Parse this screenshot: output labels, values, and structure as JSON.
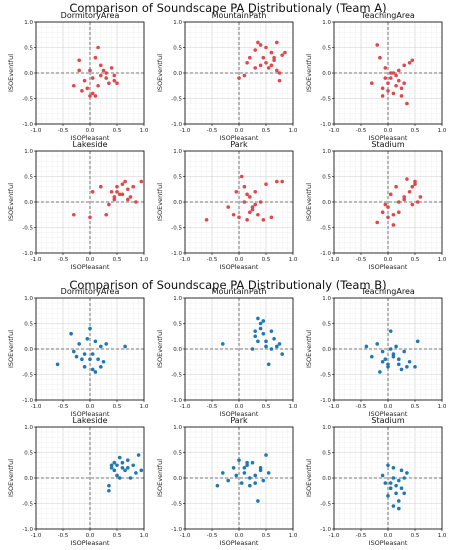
{
  "figure": {
    "titles": [
      "Comparison of Soundscape PA Distributionaly (Team A)",
      "Comparison of Soundscape PA Distributionaly (Team B)"
    ]
  },
  "chart_data": [
    {
      "type": "scatter",
      "group": "Team A",
      "title": "DormitoryArea",
      "xlabel": "ISOPleasant",
      "ylabel": "ISOEventful",
      "xlim": [
        -1,
        1
      ],
      "ylim": [
        -1,
        1
      ],
      "ticks": [
        "-1.0",
        "-0.5",
        "0.0",
        "0.5",
        "1.0"
      ],
      "grid": true,
      "color": "#e0474c",
      "x": [
        -0.3,
        -0.2,
        -0.15,
        -0.05,
        0.0,
        0.05,
        0.1,
        0.15,
        0.2,
        0.25,
        0.3,
        0.35,
        0.4,
        0.45,
        0.5,
        0.0,
        0.05,
        0.1,
        -0.2,
        0.2,
        0.3,
        0.45,
        -0.1,
        0.15
      ],
      "y": [
        -0.25,
        0.05,
        -0.35,
        -0.3,
        -0.45,
        -0.4,
        0.3,
        0.5,
        0.15,
        0.05,
        -0.1,
        -0.2,
        0.1,
        -0.15,
        -0.2,
        0.05,
        -0.1,
        -0.45,
        0.25,
        -0.05,
        0.0,
        -0.05,
        -0.15,
        -0.25
      ]
    },
    {
      "type": "scatter",
      "group": "Team A",
      "title": "MountainPath",
      "xlabel": "ISOPleasant",
      "ylabel": "ISOEventful",
      "xlim": [
        -1,
        1
      ],
      "ylim": [
        -1,
        1
      ],
      "ticks": [
        "-1.0",
        "-0.5",
        "0.0",
        "0.5",
        "1.0"
      ],
      "grid": true,
      "color": "#e0474c",
      "x": [
        0.0,
        0.1,
        0.15,
        0.2,
        0.3,
        0.35,
        0.4,
        0.45,
        0.5,
        0.55,
        0.6,
        0.65,
        0.7,
        0.75,
        0.8,
        0.85,
        0.3,
        0.5,
        0.6,
        0.7,
        0.75,
        0.4,
        0.65
      ],
      "y": [
        -0.1,
        -0.05,
        0.2,
        0.3,
        0.45,
        0.6,
        0.15,
        0.3,
        0.5,
        0.1,
        0.4,
        0.25,
        0.6,
        0.0,
        0.35,
        0.4,
        0.1,
        0.2,
        0.15,
        0.05,
        -0.15,
        0.55,
        0.3
      ]
    },
    {
      "type": "scatter",
      "group": "Team A",
      "title": "TeachingArea",
      "xlabel": "ISOPleasant",
      "ylabel": "ISOEventful",
      "xlim": [
        -1,
        1
      ],
      "ylim": [
        -1,
        1
      ],
      "ticks": [
        "-1.0",
        "-0.5",
        "0.0",
        "0.5",
        "1.0"
      ],
      "grid": true,
      "color": "#e0474c",
      "x": [
        -0.3,
        -0.2,
        -0.15,
        -0.1,
        -0.05,
        0.0,
        0.05,
        0.1,
        0.15,
        0.2,
        0.25,
        0.3,
        0.35,
        0.4,
        0.45,
        -0.1,
        0.0,
        0.1,
        0.2,
        0.3,
        0.05,
        -0.05,
        0.15,
        0.25
      ],
      "y": [
        -0.2,
        0.55,
        0.3,
        -0.3,
        0.1,
        -0.2,
        -0.1,
        0.0,
        -0.05,
        -0.15,
        -0.3,
        0.15,
        -0.6,
        0.2,
        0.25,
        -0.45,
        -0.35,
        -0.4,
        0.05,
        -0.2,
        0.0,
        -0.1,
        -0.25,
        -0.45
      ]
    },
    {
      "type": "scatter",
      "group": "Team A",
      "title": "Lakeside",
      "xlabel": "ISOPleasant",
      "ylabel": "ISOEventful",
      "xlim": [
        -1,
        1
      ],
      "ylim": [
        -1,
        1
      ],
      "ticks": [
        "-1.0",
        "-0.5",
        "0.0",
        "0.5",
        "1.0"
      ],
      "grid": true,
      "color": "#e0474c",
      "x": [
        -0.3,
        0.0,
        0.05,
        0.3,
        0.4,
        0.45,
        0.5,
        0.55,
        0.6,
        0.65,
        0.7,
        0.75,
        0.8,
        0.85,
        0.95,
        0.35,
        0.5,
        0.6,
        0.7,
        0.45,
        0.2
      ],
      "y": [
        -0.25,
        -0.3,
        0.2,
        -0.25,
        0.2,
        0.05,
        0.3,
        0.15,
        0.35,
        0.4,
        0.25,
        0.1,
        0.3,
        0.0,
        0.4,
        -0.05,
        0.2,
        0.15,
        0.05,
        0.1,
        0.3
      ]
    },
    {
      "type": "scatter",
      "group": "Team A",
      "title": "Park",
      "xlabel": "ISOPleasant",
      "ylabel": "ISOEventful",
      "xlim": [
        -1,
        1
      ],
      "ylim": [
        -1,
        1
      ],
      "ticks": [
        "-1.0",
        "-0.5",
        "0.0",
        "0.5",
        "1.0"
      ],
      "grid": true,
      "color": "#e0474c",
      "x": [
        -0.6,
        -0.2,
        -0.1,
        0.0,
        0.05,
        0.1,
        0.15,
        0.2,
        0.25,
        0.3,
        0.35,
        0.4,
        0.5,
        0.6,
        0.7,
        0.8,
        0.1,
        0.2,
        0.3,
        0.45,
        -0.05,
        0.25,
        0.15
      ],
      "y": [
        -0.35,
        -0.1,
        -0.25,
        -0.3,
        0.5,
        0.3,
        -0.35,
        0.1,
        -0.15,
        -0.05,
        -0.25,
        0.0,
        0.35,
        -0.3,
        0.4,
        0.4,
        0.0,
        -0.2,
        0.2,
        -0.35,
        0.2,
        -0.1,
        0.15
      ]
    },
    {
      "type": "scatter",
      "group": "Team A",
      "title": "Stadium",
      "xlabel": "ISOPleasant",
      "ylabel": "ISOEventful",
      "xlim": [
        -1,
        1
      ],
      "ylim": [
        -1,
        1
      ],
      "ticks": [
        "-1.0",
        "-0.5",
        "0.0",
        "0.5",
        "1.0"
      ],
      "grid": true,
      "color": "#e0474c",
      "x": [
        -0.2,
        -0.1,
        0.0,
        0.05,
        0.1,
        0.15,
        0.2,
        0.3,
        0.35,
        0.4,
        0.45,
        0.5,
        0.55,
        0.6,
        0.0,
        0.2,
        0.3,
        0.45,
        0.5,
        0.1,
        -0.05
      ],
      "y": [
        -0.4,
        -0.2,
        -0.3,
        0.15,
        -0.45,
        0.3,
        0.0,
        0.1,
        0.45,
        0.2,
        -0.05,
        0.35,
        0.0,
        0.1,
        -0.1,
        -0.2,
        0.05,
        0.3,
        0.4,
        -0.25,
        -0.05
      ]
    },
    {
      "type": "scatter",
      "group": "Team B",
      "title": "DormitoryArea",
      "xlabel": "ISOPleasant",
      "ylabel": "ISOEventful",
      "xlim": [
        -1,
        1
      ],
      "ylim": [
        -1,
        1
      ],
      "ticks": [
        "-1.0",
        "-0.5",
        "0.0",
        "0.5",
        "1.0"
      ],
      "grid": true,
      "color": "#1f77b4",
      "x": [
        -0.6,
        -0.35,
        -0.3,
        -0.2,
        -0.15,
        -0.1,
        -0.05,
        0.0,
        0.05,
        0.1,
        0.15,
        0.2,
        0.25,
        0.3,
        0.65,
        -0.1,
        0.0,
        0.1,
        -0.25,
        0.2,
        0.05
      ],
      "y": [
        -0.3,
        0.3,
        -0.05,
        0.1,
        -0.2,
        -0.35,
        0.2,
        0.4,
        -0.1,
        -0.45,
        -0.2,
        0.05,
        -0.25,
        0.1,
        0.05,
        -0.1,
        -0.2,
        0.15,
        -0.15,
        -0.35,
        -0.4
      ]
    },
    {
      "type": "scatter",
      "group": "Team B",
      "title": "MountainPath",
      "xlabel": "ISOPleasant",
      "ylabel": "ISOEventful",
      "xlim": [
        -1,
        1
      ],
      "ylim": [
        -1,
        1
      ],
      "ticks": [
        "-1.0",
        "-0.5",
        "0.0",
        "0.5",
        "1.0"
      ],
      "grid": true,
      "color": "#1f77b4",
      "x": [
        -0.3,
        0.25,
        0.3,
        0.35,
        0.4,
        0.45,
        0.5,
        0.55,
        0.6,
        0.65,
        0.7,
        0.75,
        0.8,
        0.35,
        0.45,
        0.6,
        0.4,
        0.5,
        0.3
      ],
      "y": [
        0.1,
        0.0,
        0.25,
        0.6,
        0.4,
        0.55,
        0.15,
        -0.3,
        0.35,
        0.2,
        0.05,
        0.1,
        -0.1,
        0.15,
        0.3,
        0.0,
        0.5,
        0.05,
        0.35
      ]
    },
    {
      "type": "scatter",
      "group": "Team B",
      "title": "TeachingArea",
      "xlabel": "ISOPleasant",
      "ylabel": "ISOEventful",
      "xlim": [
        -1,
        1
      ],
      "ylim": [
        -1,
        1
      ],
      "ticks": [
        "-1.0",
        "-0.5",
        "0.0",
        "0.5",
        "1.0"
      ],
      "grid": true,
      "color": "#1f77b4",
      "x": [
        -0.4,
        -0.3,
        -0.2,
        -0.15,
        -0.1,
        -0.05,
        0.0,
        0.05,
        0.1,
        0.15,
        0.2,
        0.25,
        0.3,
        0.35,
        0.4,
        0.5,
        0.55,
        0.0,
        0.1,
        0.2,
        -0.1,
        0.05
      ],
      "y": [
        0.05,
        -0.15,
        0.1,
        -0.45,
        -0.05,
        -0.2,
        -0.35,
        0.35,
        -0.1,
        0.05,
        -0.3,
        -0.4,
        -0.05,
        -0.35,
        -0.25,
        -0.35,
        0.15,
        -0.3,
        -0.15,
        -0.2,
        -0.25,
        0.0
      ]
    },
    {
      "type": "scatter",
      "group": "Team B",
      "title": "Lakeside",
      "xlabel": "ISOPleasant",
      "ylabel": "ISOEventful",
      "xlim": [
        -1,
        1
      ],
      "ylim": [
        -1,
        1
      ],
      "ticks": [
        "-1.0",
        "-0.5",
        "0.0",
        "0.5",
        "1.0"
      ],
      "grid": true,
      "color": "#1f77b4",
      "x": [
        0.35,
        0.4,
        0.45,
        0.5,
        0.55,
        0.6,
        0.65,
        0.7,
        0.75,
        0.8,
        0.85,
        0.9,
        0.95,
        0.35,
        0.5,
        0.6,
        0.7,
        0.45,
        0.55,
        0.4
      ],
      "y": [
        -0.25,
        0.2,
        0.3,
        0.05,
        0.4,
        0.2,
        0.15,
        0.35,
        0.0,
        0.25,
        0.1,
        0.45,
        0.15,
        -0.15,
        0.25,
        0.3,
        0.2,
        0.15,
        0.0,
        0.25
      ]
    },
    {
      "type": "scatter",
      "group": "Team B",
      "title": "Park",
      "xlabel": "ISOPleasant",
      "ylabel": "ISOEventful",
      "xlim": [
        -1,
        1
      ],
      "ylim": [
        -1,
        1
      ],
      "ticks": [
        "-1.0",
        "-0.5",
        "0.0",
        "0.5",
        "1.0"
      ],
      "grid": true,
      "color": "#1f77b4",
      "x": [
        -0.4,
        -0.3,
        -0.2,
        -0.1,
        0.0,
        0.05,
        0.1,
        0.15,
        0.2,
        0.25,
        0.3,
        0.35,
        0.4,
        0.45,
        0.5,
        0.55,
        0.1,
        0.2,
        0.3,
        0.4,
        -0.05,
        0.15
      ],
      "y": [
        -0.15,
        0.1,
        -0.05,
        0.2,
        0.35,
        -0.1,
        0.1,
        0.25,
        -0.15,
        0.3,
        0.05,
        -0.45,
        0.2,
        -0.05,
        0.45,
        0.1,
        0.2,
        0.0,
        -0.1,
        0.15,
        0.05,
        0.3
      ]
    },
    {
      "type": "scatter",
      "group": "Team B",
      "title": "Stadium",
      "xlabel": "ISOPleasant",
      "ylabel": "ISOEventful",
      "xlim": [
        -1,
        1
      ],
      "ylim": [
        -1,
        1
      ],
      "ticks": [
        "-1.0",
        "-0.5",
        "0.0",
        "0.5",
        "1.0"
      ],
      "grid": true,
      "color": "#1f77b4",
      "x": [
        -0.1,
        0.0,
        0.05,
        0.1,
        0.15,
        0.2,
        0.25,
        0.3,
        0.35,
        0.1,
        0.2,
        0.15,
        0.3,
        0.05,
        0.25,
        0.2,
        0.0,
        0.1,
        -0.05
      ],
      "y": [
        0.05,
        0.25,
        -0.1,
        0.2,
        -0.3,
        -0.45,
        -0.2,
        0.0,
        0.1,
        -0.55,
        -0.05,
        -0.15,
        -0.3,
        -0.2,
        0.15,
        -0.6,
        -0.35,
        0.0,
        -0.1
      ]
    }
  ]
}
